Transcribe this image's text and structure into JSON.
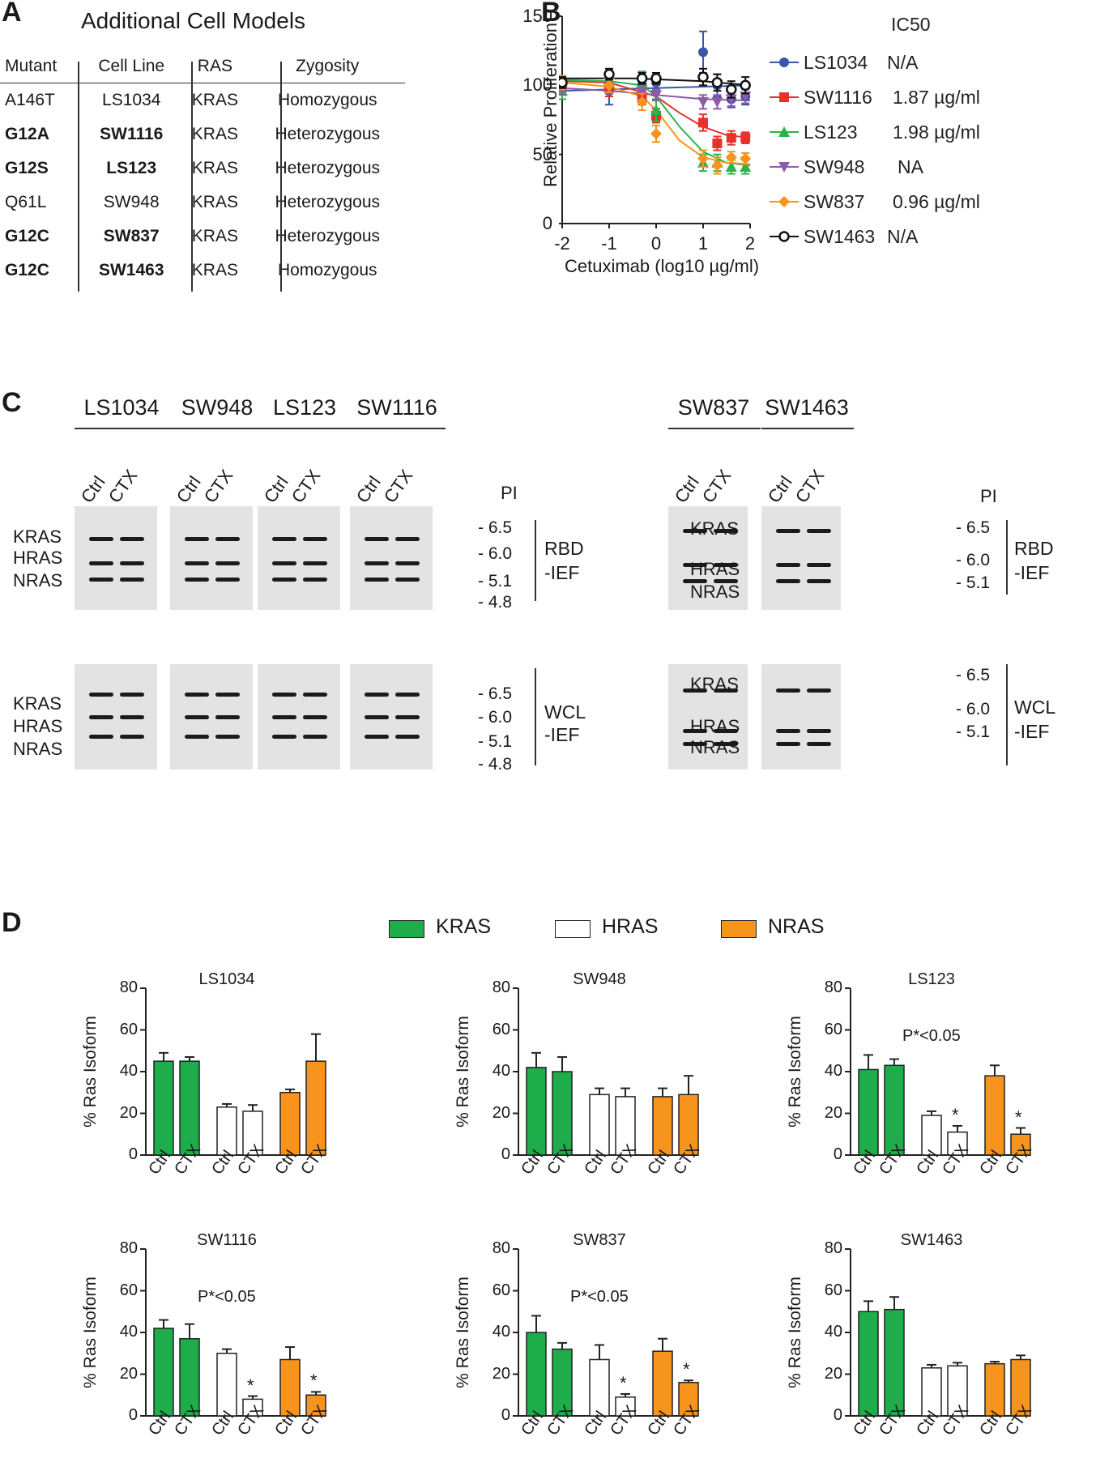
{
  "panel_a": {
    "letter": "A",
    "title": "Additional Cell Models",
    "headers": [
      "Mutant",
      "Cell Line",
      "RAS",
      "Zygosity"
    ],
    "rows": [
      {
        "mutant": "A146T",
        "cell_line": "LS1034",
        "ras": "KRAS",
        "zygosity": "Homozygous",
        "bold": false
      },
      {
        "mutant": "G12A",
        "cell_line": "SW1116",
        "ras": "KRAS",
        "zygosity": "Heterozygous",
        "bold": true
      },
      {
        "mutant": "G12S",
        "cell_line": "LS123",
        "ras": "KRAS",
        "zygosity": "Heterozygous",
        "bold": true
      },
      {
        "mutant": "Q61L",
        "cell_line": "SW948",
        "ras": "KRAS",
        "zygosity": "Heterozygous",
        "bold": false
      },
      {
        "mutant": "G12C",
        "cell_line": "SW837",
        "ras": "KRAS",
        "zygosity": "Heterozygous",
        "bold": true
      },
      {
        "mutant": "G12C",
        "cell_line": "SW1463",
        "ras": "KRAS",
        "zygosity": "Homozygous",
        "bold": true
      }
    ]
  },
  "panel_b": {
    "letter": "B",
    "legend_title": "IC50"
  },
  "panel_c": {
    "letter": "C",
    "left_cells": [
      "LS1034",
      "SW948",
      "LS123",
      "SW1116"
    ],
    "right_cells": [
      "SW837",
      "SW1463"
    ],
    "lanes": [
      "Ctrl",
      "CTX"
    ],
    "pi_label": "PI",
    "isoforms": [
      "KRAS",
      "HRAS",
      "NRAS"
    ],
    "pi_left": [
      "6.5",
      "6.0",
      "5.1",
      "4.8"
    ],
    "pi_right": [
      "6.5",
      "6.0",
      "5.1"
    ],
    "rbd_label": [
      "RBD",
      "-IEF"
    ],
    "wcl_label": [
      "WCL",
      "-IEF"
    ]
  },
  "panel_d": {
    "letter": "D",
    "legend": [
      {
        "name": "KRAS",
        "color": "#1fad4b"
      },
      {
        "name": "HRAS",
        "color": "#ffffff"
      },
      {
        "name": "NRAS",
        "color": "#f7941d"
      }
    ],
    "x_labels": [
      "Ctrl",
      "CTX",
      "Ctrl",
      "CTX",
      "Ctrl",
      "CTX"
    ]
  },
  "chart_data": [
    {
      "type": "line",
      "xlabel": "Cetuximab (log10 µg/ml)",
      "ylabel": "Relative Proliferation",
      "xlim": [
        -2,
        2
      ],
      "ylim": [
        0,
        150
      ],
      "xticks": [
        -2,
        -1,
        0,
        1,
        2
      ],
      "yticks": [
        0,
        50,
        100,
        150
      ],
      "legend_title": "IC50",
      "legend_placement": "right",
      "series": [
        {
          "name": "LS1034",
          "ic50": "N/A",
          "color": "#3a56a8",
          "marker": "circle",
          "x": [
            -2,
            -1,
            -0.3,
            0,
            1,
            1.3,
            1.6,
            1.9
          ],
          "y": [
            98,
            96,
            100,
            102,
            124,
            100,
            90,
            92
          ],
          "err": [
            3,
            10,
            6,
            4,
            15,
            8,
            6,
            6
          ],
          "fit": [
            [
              -2,
              96
            ],
            [
              2,
              100
            ]
          ]
        },
        {
          "name": "SW1116",
          "ic50": "1.87 µg/ml",
          "color": "#e8312d",
          "marker": "square",
          "x": [
            -2,
            -1,
            -0.3,
            0,
            1,
            1.3,
            1.6,
            1.9
          ],
          "y": [
            100,
            98,
            92,
            78,
            73,
            58,
            62,
            62
          ],
          "err": [
            6,
            6,
            6,
            5,
            6,
            5,
            5,
            4
          ],
          "fit": [
            [
              -2,
              103
            ],
            [
              -1,
              102
            ],
            [
              0,
              92
            ],
            [
              0.5,
              80
            ],
            [
              1,
              70
            ],
            [
              1.5,
              64
            ],
            [
              2,
              62
            ]
          ]
        },
        {
          "name": "LS123",
          "ic50": "1.98 µg/ml",
          "color": "#2bb34b",
          "marker": "triangle",
          "x": [
            -2,
            -1,
            -0.3,
            0,
            1,
            1.3,
            1.6,
            1.9
          ],
          "y": [
            96,
            108,
            102,
            82,
            44,
            44,
            41,
            41
          ],
          "err": [
            6,
            4,
            8,
            8,
            6,
            6,
            5,
            5
          ],
          "fit": [
            [
              -2,
              104
            ],
            [
              -1,
              103
            ],
            [
              -0.3,
              100
            ],
            [
              0,
              92
            ],
            [
              0.5,
              70
            ],
            [
              1,
              52
            ],
            [
              1.5,
              44
            ],
            [
              2,
              42
            ]
          ]
        },
        {
          "name": "SW948",
          "ic50": "NA",
          "color": "#8e5ba8",
          "marker": "triangle-down",
          "x": [
            -2,
            -1,
            -0.3,
            0,
            1,
            1.3,
            1.6,
            1.9
          ],
          "y": [
            97,
            98,
            95,
            93,
            88,
            88,
            90,
            92
          ],
          "err": [
            4,
            4,
            5,
            4,
            5,
            5,
            5,
            5
          ],
          "fit": [
            [
              -2,
              98
            ],
            [
              -1,
              96
            ],
            [
              0,
              93
            ],
            [
              1,
              90
            ],
            [
              2,
              89
            ]
          ]
        },
        {
          "name": "SW837",
          "ic50": "0.96 µg/ml",
          "color": "#f7941d",
          "marker": "diamond",
          "x": [
            -2,
            -1,
            -0.3,
            0,
            1,
            1.3,
            1.6,
            1.9
          ],
          "y": [
            102,
            100,
            88,
            65,
            47,
            42,
            48,
            47
          ],
          "err": [
            5,
            5,
            6,
            6,
            6,
            6,
            4,
            4
          ],
          "fit": [
            [
              -2,
              102
            ],
            [
              -1,
              99
            ],
            [
              -0.3,
              92
            ],
            [
              0,
              82
            ],
            [
              0.5,
              60
            ],
            [
              1,
              48
            ],
            [
              1.5,
              44
            ],
            [
              2,
              43
            ]
          ]
        },
        {
          "name": "SW1463",
          "ic50": "N/A",
          "color": "#111111",
          "marker": "circle-open",
          "x": [
            -2,
            -1,
            -0.3,
            0,
            1,
            1.3,
            1.6,
            1.9
          ],
          "y": [
            102,
            108,
            105,
            105,
            106,
            102,
            97,
            100
          ],
          "err": [
            4,
            4,
            4,
            4,
            6,
            6,
            6,
            6
          ],
          "fit": [
            [
              -2,
              105
            ],
            [
              -0.5,
              105
            ],
            [
              1,
              103
            ],
            [
              2,
              100
            ]
          ]
        }
      ]
    },
    {
      "type": "bar",
      "title": "LS1034",
      "ylabel": "% Ras Isoform",
      "ylim": [
        0,
        80
      ],
      "yticks": [
        0,
        20,
        40,
        60,
        80
      ],
      "categories": [
        "Ctrl",
        "CTX",
        "Ctrl",
        "CTX",
        "Ctrl",
        "CTX"
      ],
      "isoform": [
        "KRAS",
        "KRAS",
        "HRAS",
        "HRAS",
        "NRAS",
        "NRAS"
      ],
      "values": [
        45,
        45,
        23,
        21,
        30,
        45
      ],
      "errors": [
        4,
        2,
        1.5,
        3,
        1.5,
        13
      ],
      "significant": [
        false,
        false,
        false,
        false,
        false,
        false
      ],
      "annotation": ""
    },
    {
      "type": "bar",
      "title": "SW948",
      "ylabel": "% Ras Isoform",
      "ylim": [
        0,
        80
      ],
      "yticks": [
        0,
        20,
        40,
        60,
        80
      ],
      "categories": [
        "Ctrl",
        "CTX",
        "Ctrl",
        "CTX",
        "Ctrl",
        "CTX"
      ],
      "isoform": [
        "KRAS",
        "KRAS",
        "HRAS",
        "HRAS",
        "NRAS",
        "NRAS"
      ],
      "values": [
        42,
        40,
        29,
        28,
        28,
        29
      ],
      "errors": [
        7,
        7,
        3,
        4,
        4,
        9
      ],
      "significant": [
        false,
        false,
        false,
        false,
        false,
        false
      ],
      "annotation": ""
    },
    {
      "type": "bar",
      "title": "LS123",
      "ylabel": "% Ras Isoform",
      "ylim": [
        0,
        80
      ],
      "yticks": [
        0,
        20,
        40,
        60,
        80
      ],
      "categories": [
        "Ctrl",
        "CTX",
        "Ctrl",
        "CTX",
        "Ctrl",
        "CTX"
      ],
      "isoform": [
        "KRAS",
        "KRAS",
        "HRAS",
        "HRAS",
        "NRAS",
        "NRAS"
      ],
      "values": [
        41,
        43,
        19,
        11,
        38,
        10
      ],
      "errors": [
        7,
        3,
        2,
        3,
        5,
        3
      ],
      "significant": [
        false,
        false,
        false,
        true,
        false,
        true
      ],
      "annotation": "P*<0.05"
    },
    {
      "type": "bar",
      "title": "SW1116",
      "ylabel": "% Ras Isoform",
      "ylim": [
        0,
        80
      ],
      "yticks": [
        0,
        20,
        40,
        60,
        80
      ],
      "categories": [
        "Ctrl",
        "CTX",
        "Ctrl",
        "CTX",
        "Ctrl",
        "CTX"
      ],
      "isoform": [
        "KRAS",
        "KRAS",
        "HRAS",
        "HRAS",
        "NRAS",
        "NRAS"
      ],
      "values": [
        42,
        37,
        30,
        8,
        27,
        10
      ],
      "errors": [
        4,
        7,
        2,
        1.5,
        6,
        1.5
      ],
      "significant": [
        false,
        false,
        false,
        true,
        false,
        true
      ],
      "annotation": "P*<0.05"
    },
    {
      "type": "bar",
      "title": "SW837",
      "ylabel": "% Ras Isoform",
      "ylim": [
        0,
        80
      ],
      "yticks": [
        0,
        20,
        40,
        60,
        80
      ],
      "categories": [
        "Ctrl",
        "CTX",
        "Ctrl",
        "CTX",
        "Ctrl",
        "CTX"
      ],
      "isoform": [
        "KRAS",
        "KRAS",
        "HRAS",
        "HRAS",
        "NRAS",
        "NRAS"
      ],
      "values": [
        40,
        32,
        27,
        9,
        31,
        16
      ],
      "errors": [
        8,
        3,
        7,
        1.5,
        6,
        1
      ],
      "significant": [
        false,
        false,
        false,
        true,
        false,
        true
      ],
      "annotation": "P*<0.05"
    },
    {
      "type": "bar",
      "title": "SW1463",
      "ylabel": "% Ras Isoform",
      "ylim": [
        0,
        80
      ],
      "yticks": [
        0,
        20,
        40,
        60,
        80
      ],
      "categories": [
        "Ctrl",
        "CTX",
        "Ctrl",
        "CTX",
        "Ctrl",
        "CTX"
      ],
      "isoform": [
        "KRAS",
        "KRAS",
        "HRAS",
        "HRAS",
        "NRAS",
        "NRAS"
      ],
      "values": [
        50,
        51,
        23,
        24,
        25,
        27
      ],
      "errors": [
        5,
        6,
        1.5,
        1.5,
        1,
        2
      ],
      "significant": [
        false,
        false,
        false,
        false,
        false,
        false
      ],
      "annotation": ""
    }
  ]
}
